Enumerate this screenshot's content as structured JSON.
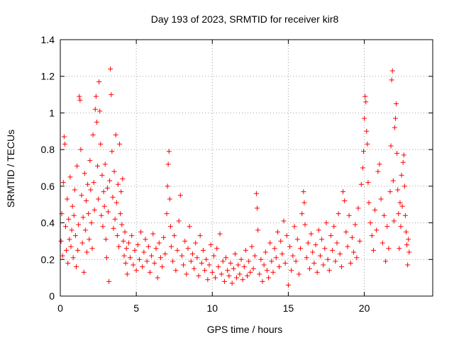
{
  "chart_data": {
    "type": "scatter",
    "title": "Day 193 of 2023, SRMTID for receiver kir8",
    "xlabel": "GPS time / hours",
    "ylabel": "SRMTID / TECUs",
    "xlim": [
      0,
      24.5
    ],
    "ylim": [
      0,
      1.4
    ],
    "x_ticks": [
      0,
      5,
      10,
      15,
      20
    ],
    "x_tick_labels": [
      "0",
      "5",
      "10",
      "15",
      "20"
    ],
    "y_ticks": [
      0,
      0.2,
      0.4,
      0.6,
      0.8,
      1,
      1.2,
      1.4
    ],
    "y_tick_labels": [
      "0",
      "0.2",
      "0.4",
      "0.6",
      "0.8",
      "1",
      "1.2",
      "1.4"
    ],
    "grid": true,
    "marker": "+",
    "series": [
      {
        "name": "SRMTID",
        "color": "#ff0000",
        "points": [
          [
            0.05,
            0.3
          ],
          [
            0.1,
            0.45
          ],
          [
            0.15,
            0.22
          ],
          [
            0.2,
            0.62
          ],
          [
            0.25,
            0.87
          ],
          [
            0.3,
            0.83
          ],
          [
            0.35,
            0.38
          ],
          [
            0.4,
            0.25
          ],
          [
            0.45,
            0.53
          ],
          [
            0.5,
            0.18
          ],
          [
            0.55,
            0.42
          ],
          [
            0.6,
            0.31
          ],
          [
            0.65,
            0.65
          ],
          [
            0.7,
            0.27
          ],
          [
            0.75,
            0.36
          ],
          [
            0.8,
            0.49
          ],
          [
            0.85,
            0.21
          ],
          [
            0.9,
            0.44
          ],
          [
            0.95,
            0.58
          ],
          [
            1.0,
            0.33
          ],
          [
            1.05,
            0.16
          ],
          [
            1.1,
            0.71
          ],
          [
            1.15,
            0.25
          ],
          [
            1.2,
            0.39
          ],
          [
            1.25,
            1.09
          ],
          [
            1.3,
            1.07
          ],
          [
            1.35,
            0.8
          ],
          [
            1.4,
            0.55
          ],
          [
            1.45,
            0.29
          ],
          [
            1.5,
            0.43
          ],
          [
            1.55,
            0.13
          ],
          [
            1.6,
            0.67
          ],
          [
            1.65,
            0.36
          ],
          [
            1.7,
            0.52
          ],
          [
            1.75,
            0.24
          ],
          [
            1.8,
            0.61
          ],
          [
            1.85,
            0.45
          ],
          [
            1.9,
            0.31
          ],
          [
            1.95,
            0.74
          ],
          [
            2.0,
            0.58
          ],
          [
            2.05,
            0.4
          ],
          [
            2.1,
            0.26
          ],
          [
            2.15,
            0.88
          ],
          [
            2.2,
            0.62
          ],
          [
            2.25,
            0.47
          ],
          [
            2.3,
            1.02
          ],
          [
            2.35,
            1.09
          ],
          [
            2.4,
            0.95
          ],
          [
            2.45,
            0.71
          ],
          [
            2.5,
            0.53
          ],
          [
            2.55,
            1.17
          ],
          [
            2.6,
            1.01
          ],
          [
            2.65,
            0.83
          ],
          [
            2.7,
            0.44
          ],
          [
            2.75,
            0.66
          ],
          [
            2.8,
            0.38
          ],
          [
            2.85,
            0.57
          ],
          [
            2.9,
            0.49
          ],
          [
            2.95,
            0.72
          ],
          [
            3.0,
            0.31
          ],
          [
            3.05,
            0.21
          ],
          [
            3.1,
            0.59
          ],
          [
            3.15,
            0.46
          ],
          [
            3.2,
            0.08
          ],
          [
            3.25,
            0.63
          ],
          [
            3.3,
            1.24
          ],
          [
            3.35,
            1.1
          ],
          [
            3.4,
            0.79
          ],
          [
            3.45,
            0.54
          ],
          [
            3.5,
            0.37
          ],
          [
            3.55,
            0.68
          ],
          [
            3.6,
            0.42
          ],
          [
            3.65,
            0.88
          ],
          [
            3.7,
            0.51
          ],
          [
            3.75,
            0.33
          ],
          [
            3.8,
            0.61
          ],
          [
            3.85,
            0.27
          ],
          [
            3.9,
            0.83
          ],
          [
            3.95,
            0.45
          ],
          [
            4.0,
            0.57
          ],
          [
            4.05,
            0.39
          ],
          [
            4.1,
            0.64
          ],
          [
            4.15,
            0.3
          ],
          [
            4.2,
            0.22
          ],
          [
            4.25,
            0.35
          ],
          [
            4.3,
            0.18
          ],
          [
            4.35,
            0.26
          ],
          [
            4.4,
            0.12
          ],
          [
            4.5,
            0.29
          ],
          [
            4.6,
            0.21
          ],
          [
            4.7,
            0.33
          ],
          [
            4.8,
            0.17
          ],
          [
            4.9,
            0.25
          ],
          [
            5.0,
            0.14
          ],
          [
            5.1,
            0.28
          ],
          [
            5.2,
            0.2
          ],
          [
            5.3,
            0.35
          ],
          [
            5.4,
            0.16
          ],
          [
            5.5,
            0.24
          ],
          [
            5.6,
            0.31
          ],
          [
            5.7,
            0.19
          ],
          [
            5.8,
            0.27
          ],
          [
            5.9,
            0.13
          ],
          [
            6.0,
            0.22
          ],
          [
            6.1,
            0.34
          ],
          [
            6.2,
            0.18
          ],
          [
            6.3,
            0.26
          ],
          [
            6.4,
            0.1
          ],
          [
            6.5,
            0.29
          ],
          [
            6.6,
            0.21
          ],
          [
            6.7,
            0.16
          ],
          [
            6.8,
            0.32
          ],
          [
            6.9,
            0.23
          ],
          [
            7.0,
            0.45
          ],
          [
            7.05,
            0.6
          ],
          [
            7.1,
            0.72
          ],
          [
            7.15,
            0.79
          ],
          [
            7.2,
            0.53
          ],
          [
            7.25,
            0.38
          ],
          [
            7.3,
            0.27
          ],
          [
            7.4,
            0.19
          ],
          [
            7.5,
            0.33
          ],
          [
            7.6,
            0.14
          ],
          [
            7.7,
            0.25
          ],
          [
            7.8,
            0.41
          ],
          [
            7.9,
            0.55
          ],
          [
            8.0,
            0.22
          ],
          [
            8.1,
            0.17
          ],
          [
            8.2,
            0.3
          ],
          [
            8.3,
            0.12
          ],
          [
            8.4,
            0.26
          ],
          [
            8.5,
            0.38
          ],
          [
            8.6,
            0.19
          ],
          [
            8.7,
            0.23
          ],
          [
            8.8,
            0.15
          ],
          [
            8.9,
            0.29
          ],
          [
            9.0,
            0.21
          ],
          [
            9.1,
            0.11
          ],
          [
            9.2,
            0.33
          ],
          [
            9.3,
            0.18
          ],
          [
            9.4,
            0.25
          ],
          [
            9.5,
            0.14
          ],
          [
            9.6,
            0.2
          ],
          [
            9.7,
            0.09
          ],
          [
            9.8,
            0.17
          ],
          [
            9.9,
            0.28
          ],
          [
            10.0,
            0.13
          ],
          [
            10.1,
            0.22
          ],
          [
            10.2,
            0.1
          ],
          [
            10.3,
            0.26
          ],
          [
            10.4,
            0.16
          ],
          [
            10.5,
            0.34
          ],
          [
            10.6,
            0.12
          ],
          [
            10.7,
            0.19
          ],
          [
            10.8,
            0.08
          ],
          [
            10.9,
            0.21
          ],
          [
            11.0,
            0.14
          ],
          [
            11.1,
            0.11
          ],
          [
            11.2,
            0.18
          ],
          [
            11.3,
            0.07
          ],
          [
            11.4,
            0.15
          ],
          [
            11.5,
            0.23
          ],
          [
            11.6,
            0.1
          ],
          [
            11.7,
            0.17
          ],
          [
            11.8,
            0.12
          ],
          [
            11.9,
            0.2
          ],
          [
            12.0,
            0.09
          ],
          [
            12.1,
            0.16
          ],
          [
            12.2,
            0.25
          ],
          [
            12.3,
            0.11
          ],
          [
            12.4,
            0.19
          ],
          [
            12.5,
            0.13
          ],
          [
            12.6,
            0.27
          ],
          [
            12.7,
            0.15
          ],
          [
            12.8,
            0.22
          ],
          [
            12.9,
            0.56
          ],
          [
            12.95,
            0.48
          ],
          [
            13.0,
            0.36
          ],
          [
            13.1,
            0.12
          ],
          [
            13.2,
            0.2
          ],
          [
            13.3,
            0.08
          ],
          [
            13.4,
            0.17
          ],
          [
            13.5,
            0.24
          ],
          [
            13.6,
            0.14
          ],
          [
            13.7,
            0.1
          ],
          [
            13.8,
            0.29
          ],
          [
            13.9,
            0.19
          ],
          [
            14.0,
            0.13
          ],
          [
            14.1,
            0.26
          ],
          [
            14.2,
            0.21
          ],
          [
            14.3,
            0.35
          ],
          [
            14.4,
            0.16
          ],
          [
            14.5,
            0.3
          ],
          [
            14.6,
            0.23
          ],
          [
            14.7,
            0.41
          ],
          [
            14.8,
            0.18
          ],
          [
            14.9,
            0.33
          ],
          [
            15.0,
            0.06
          ],
          [
            15.1,
            0.27
          ],
          [
            15.2,
            0.14
          ],
          [
            15.3,
            0.22
          ],
          [
            15.4,
            0.38
          ],
          [
            15.5,
            0.19
          ],
          [
            15.6,
            0.31
          ],
          [
            15.7,
            0.12
          ],
          [
            15.8,
            0.26
          ],
          [
            15.9,
            0.45
          ],
          [
            16.0,
            0.57
          ],
          [
            16.05,
            0.51
          ],
          [
            16.1,
            0.39
          ],
          [
            16.2,
            0.21
          ],
          [
            16.3,
            0.29
          ],
          [
            16.4,
            0.15
          ],
          [
            16.5,
            0.34
          ],
          [
            16.6,
            0.24
          ],
          [
            16.7,
            0.18
          ],
          [
            16.8,
            0.28
          ],
          [
            16.9,
            0.13
          ],
          [
            17.0,
            0.36
          ],
          [
            17.1,
            0.22
          ],
          [
            17.2,
            0.31
          ],
          [
            17.3,
            0.17
          ],
          [
            17.4,
            0.26
          ],
          [
            17.5,
            0.4
          ],
          [
            17.6,
            0.2
          ],
          [
            17.7,
            0.14
          ],
          [
            17.8,
            0.33
          ],
          [
            17.9,
            0.25
          ],
          [
            18.0,
            0.38
          ],
          [
            18.1,
            0.19
          ],
          [
            18.2,
            0.29
          ],
          [
            18.3,
            0.45
          ],
          [
            18.4,
            0.23
          ],
          [
            18.5,
            0.16
          ],
          [
            18.6,
            0.57
          ],
          [
            18.7,
            0.52
          ],
          [
            18.8,
            0.35
          ],
          [
            18.9,
            0.27
          ],
          [
            19.0,
            0.44
          ],
          [
            19.1,
            0.18
          ],
          [
            19.2,
            0.32
          ],
          [
            19.3,
            0.24
          ],
          [
            19.4,
            0.39
          ],
          [
            19.5,
            0.21
          ],
          [
            19.6,
            0.48
          ],
          [
            19.7,
            0.3
          ],
          [
            19.8,
            0.61
          ],
          [
            19.9,
            0.7
          ],
          [
            19.95,
            0.79
          ],
          [
            20.0,
            0.97
          ],
          [
            20.05,
            1.09
          ],
          [
            20.1,
            1.06
          ],
          [
            20.15,
            0.9
          ],
          [
            20.2,
            0.83
          ],
          [
            20.25,
            0.62
          ],
          [
            20.3,
            0.51
          ],
          [
            20.4,
            0.4
          ],
          [
            20.5,
            0.33
          ],
          [
            20.6,
            0.25
          ],
          [
            20.7,
            0.47
          ],
          [
            20.8,
            0.36
          ],
          [
            20.9,
            0.68
          ],
          [
            21.0,
            0.72
          ],
          [
            21.1,
            0.53
          ],
          [
            21.2,
            0.29
          ],
          [
            21.3,
            0.44
          ],
          [
            21.4,
            0.19
          ],
          [
            21.5,
            0.38
          ],
          [
            21.6,
            0.26
          ],
          [
            21.7,
            0.57
          ],
          [
            21.75,
            0.82
          ],
          [
            21.8,
            1.18
          ],
          [
            21.85,
            1.23
          ],
          [
            21.9,
            0.63
          ],
          [
            21.95,
            0.41
          ],
          [
            22.0,
            0.92
          ],
          [
            22.05,
            0.97
          ],
          [
            22.1,
            1.05
          ],
          [
            22.15,
            0.78
          ],
          [
            22.2,
            0.58
          ],
          [
            22.25,
            0.45
          ],
          [
            22.3,
            0.26
          ],
          [
            22.35,
            0.51
          ],
          [
            22.4,
            0.38
          ],
          [
            22.45,
            0.66
          ],
          [
            22.5,
            0.49
          ],
          [
            22.55,
            0.73
          ],
          [
            22.6,
            0.77
          ],
          [
            22.65,
            0.6
          ],
          [
            22.7,
            0.44
          ],
          [
            22.75,
            0.35
          ],
          [
            22.8,
            0.28
          ],
          [
            22.85,
            0.17
          ],
          [
            22.9,
            0.31
          ],
          [
            22.95,
            0.24
          ]
        ]
      }
    ]
  }
}
